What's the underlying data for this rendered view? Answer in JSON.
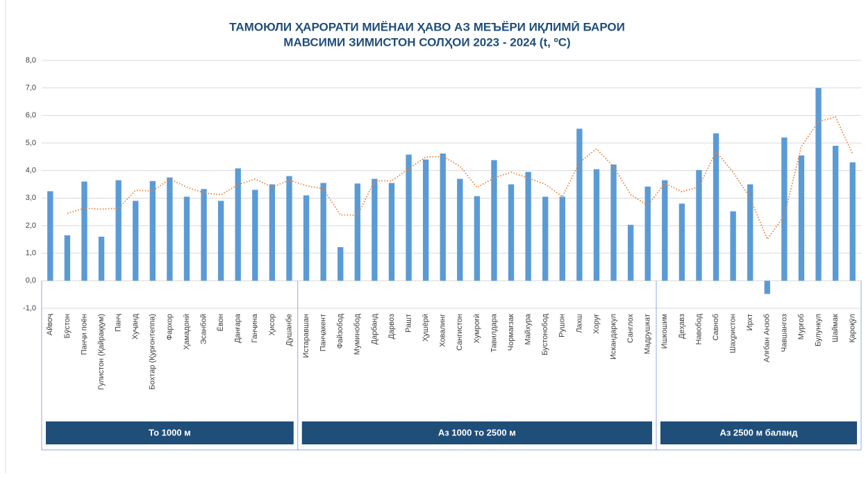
{
  "chart_data": {
    "type": "bar",
    "title": [
      "ТАМОЮЛИ ҲАРОРАТИ МИЁНАИ ҲАВО АЗ МЕЪЁРИ ИҚЛИМӢ БАРОИ",
      "МАВСИМИ ЗИМИСТОН СОЛҲОИ 2023 - 2024 (t, ºC)"
    ],
    "color": "#5b9bd5",
    "trend_color": "#ed7d31",
    "ylim": [
      -1,
      8
    ],
    "yticks": [
      {
        "value": -1,
        "label": "-1,0"
      },
      {
        "value": 0,
        "label": "0,0"
      },
      {
        "value": 1,
        "label": "1,0"
      },
      {
        "value": 2,
        "label": "2,0"
      },
      {
        "value": 3,
        "label": "3,0"
      },
      {
        "value": 4,
        "label": "4,0"
      },
      {
        "value": 5,
        "label": "5,0"
      },
      {
        "value": 6,
        "label": "6,0"
      },
      {
        "value": 7,
        "label": "7,0"
      },
      {
        "value": 8,
        "label": "8,0"
      }
    ],
    "grid": true,
    "groups": [
      {
        "name": "То 1000 м",
        "categories": [
          "Айвоҷ",
          "Бӯстон",
          "Панҷи поён",
          "Гулистон (Қайраққум)",
          "Панҷ",
          "Хуҷанд",
          "Бохтар (Қурғонтеппа)",
          "Фархор",
          "Ҳамадонӣ",
          "Эсанбой",
          "Ёвон",
          "Данғара",
          "Ганҷина",
          "Ҳисор",
          "Душанбе"
        ],
        "values": [
          3.25,
          1.65,
          3.6,
          1.6,
          3.65,
          2.9,
          3.62,
          3.75,
          3.05,
          3.33,
          2.9,
          4.08,
          3.3,
          3.5,
          3.8
        ],
        "trend": [
          null,
          2.45,
          2.63,
          2.6,
          2.63,
          3.28,
          3.26,
          3.69,
          3.4,
          3.19,
          3.12,
          3.49,
          3.69,
          3.4,
          3.65
        ]
      },
      {
        "name": "Аз 1000 то 2500 м",
        "categories": [
          "Истаравшан",
          "Панҷакент",
          "Файзобод",
          "Муминобод",
          "Дарбанд",
          "Дарвоз",
          "Рашт",
          "Ҳушёрӣ",
          "Ховалинг",
          "Сангистон",
          "Хумроғӣ",
          "Тавилдара",
          "Чормағзак",
          "Майхура",
          "Бустонобод",
          "Рушон",
          "Лахш",
          "Хоруғ",
          "Искандаркул",
          "Санглох",
          "Мадрушкат"
        ],
        "values": [
          3.1,
          3.55,
          1.22,
          3.53,
          3.7,
          3.55,
          4.58,
          4.4,
          4.62,
          3.7,
          3.07,
          4.38,
          3.5,
          3.95,
          3.05,
          3.05,
          5.52,
          4.05,
          4.22,
          2.03,
          3.42
        ],
        "trend": [
          3.45,
          3.33,
          2.39,
          2.38,
          3.62,
          3.63,
          4.07,
          4.49,
          4.51,
          4.16,
          3.39,
          3.73,
          3.94,
          3.73,
          3.5,
          3.05,
          4.29,
          4.79,
          4.14,
          3.13,
          2.73
        ]
      },
      {
        "name": "Аз 2500 м баланд",
        "categories": [
          "Ишкошим",
          "Деҳавз",
          "Навобод",
          "Савноб",
          "Шаҳристон",
          "Ирхт",
          "Алғбан Анзоб",
          "Чавшангоз",
          "Мурғоб",
          "Булункул",
          "Шаймак",
          "Қароқӯл"
        ],
        "values": [
          3.65,
          2.8,
          4.02,
          5.35,
          2.52,
          3.5,
          -0.48,
          5.2,
          4.55,
          7.0,
          4.9,
          4.3
        ],
        "trend": [
          3.54,
          3.23,
          3.41,
          4.69,
          3.94,
          3.01,
          1.51,
          2.36,
          4.88,
          5.78,
          5.95,
          4.6
        ]
      }
    ]
  }
}
